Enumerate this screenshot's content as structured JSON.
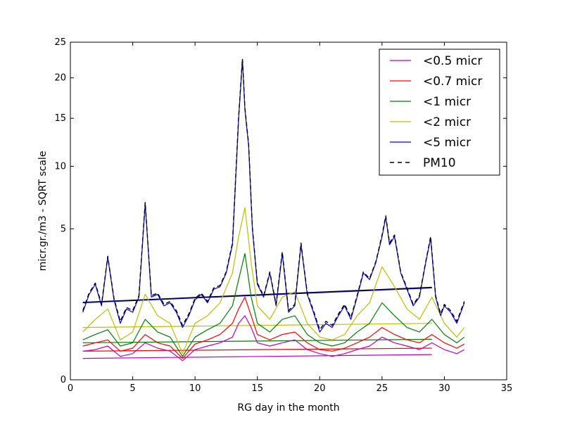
{
  "chart_data": {
    "type": "line",
    "xlabel": "RG day in the month",
    "ylabel": "micr.gr./m3 - SQRT scale",
    "xlim": [
      0,
      35
    ],
    "ylim": [
      0,
      25
    ],
    "y_scale": "sqrt",
    "x_ticks": [
      "0",
      "5",
      "10",
      "15",
      "20",
      "25",
      "30",
      "35"
    ],
    "y_ticks": [
      "0",
      "5",
      "10",
      "15",
      "20",
      "25"
    ],
    "legend_position": "top-right",
    "grid": false,
    "series": [
      {
        "name": "<0.5 micr",
        "color": "#bf00bf",
        "style": "solid",
        "x": [
          1,
          2,
          3,
          4,
          5,
          6,
          7,
          8,
          9,
          10,
          11,
          12,
          13,
          13.5,
          14,
          14.5,
          15,
          16,
          17,
          18,
          19,
          20,
          21,
          22,
          23,
          24,
          25,
          26,
          27,
          28,
          29,
          30,
          31,
          31.6
        ],
        "y": [
          0.18,
          0.2,
          0.25,
          0.12,
          0.15,
          0.3,
          0.22,
          0.18,
          0.08,
          0.2,
          0.25,
          0.3,
          0.4,
          0.7,
          0.9,
          0.6,
          0.3,
          0.25,
          0.3,
          0.35,
          0.2,
          0.15,
          0.12,
          0.15,
          0.2,
          0.25,
          0.4,
          0.3,
          0.25,
          0.2,
          0.3,
          0.2,
          0.15,
          0.2
        ]
      },
      {
        "name": "<0.7 micr",
        "color": "#ff0000",
        "style": "solid",
        "x": [
          1,
          2,
          3,
          4,
          5,
          6,
          7,
          8,
          9,
          10,
          11,
          12,
          13,
          13.5,
          14,
          14.5,
          15,
          16,
          17,
          18,
          19,
          20,
          21,
          22,
          23,
          24,
          25,
          26,
          27,
          28,
          29,
          30,
          31,
          31.6
        ],
        "y": [
          0.25,
          0.3,
          0.35,
          0.18,
          0.22,
          0.45,
          0.3,
          0.25,
          0.1,
          0.28,
          0.35,
          0.45,
          0.7,
          1.1,
          1.5,
          0.9,
          0.45,
          0.35,
          0.45,
          0.5,
          0.3,
          0.2,
          0.18,
          0.22,
          0.3,
          0.4,
          0.6,
          0.45,
          0.35,
          0.3,
          0.45,
          0.3,
          0.22,
          0.28
        ]
      },
      {
        "name": "<1 micr",
        "color": "#008000",
        "style": "solid",
        "x": [
          1,
          2,
          3,
          4,
          5,
          6,
          7,
          8,
          9,
          10,
          11,
          12,
          13,
          13.5,
          14,
          14.5,
          15,
          16,
          17,
          18,
          19,
          20,
          21,
          22,
          23,
          24,
          25,
          26,
          27,
          28,
          29,
          30,
          31,
          31.6
        ],
        "y": [
          0.35,
          0.45,
          0.55,
          0.25,
          0.3,
          0.8,
          0.5,
          0.4,
          0.12,
          0.4,
          0.55,
          0.7,
          1.2,
          2.2,
          3.5,
          1.5,
          0.7,
          0.5,
          0.8,
          0.9,
          0.45,
          0.3,
          0.25,
          0.3,
          0.5,
          0.7,
          1.3,
          0.9,
          0.6,
          0.5,
          0.8,
          0.45,
          0.3,
          0.4
        ]
      },
      {
        "name": "<2 micr",
        "color": "#bfbf00",
        "style": "solid",
        "x": [
          1,
          2,
          3,
          4,
          5,
          6,
          7,
          8,
          9,
          10,
          11,
          12,
          13,
          13.5,
          14,
          14.5,
          15,
          16,
          17,
          18,
          19,
          20,
          21,
          22,
          23,
          24,
          25,
          26,
          27,
          28,
          29,
          30,
          31,
          31.6
        ],
        "y": [
          0.5,
          0.8,
          1.1,
          0.35,
          0.5,
          1.6,
          0.9,
          0.7,
          0.15,
          0.7,
          0.9,
          1.3,
          2.5,
          4.5,
          6.5,
          3.0,
          1.2,
          0.8,
          1.5,
          1.7,
          0.7,
          0.4,
          0.35,
          0.45,
          0.9,
          1.3,
          2.8,
          1.9,
          1.1,
          0.8,
          1.5,
          0.7,
          0.4,
          0.6
        ]
      },
      {
        "name": "<5 micr",
        "color": "#0000ff",
        "style": "solid",
        "x": [
          1,
          1.5,
          2,
          2.5,
          3,
          3.5,
          4,
          4.5,
          5,
          5.5,
          6,
          6.5,
          7,
          7.5,
          8,
          8.5,
          9,
          9.5,
          10,
          10.5,
          11,
          11.5,
          12,
          12.5,
          13,
          13.5,
          13.8,
          14,
          14.3,
          14.6,
          15,
          15.5,
          16,
          16.5,
          17,
          17.5,
          18,
          18.5,
          19,
          19.5,
          20,
          20.5,
          21,
          21.5,
          22,
          22.5,
          23,
          23.5,
          24,
          24.5,
          25,
          25.3,
          25.6,
          26,
          26.5,
          27,
          27.5,
          28,
          28.5,
          28.9,
          29.3,
          29.7,
          30,
          30.5,
          31,
          31.6
        ],
        "y": [
          1.0,
          1.6,
          2.0,
          1.2,
          3.3,
          1.4,
          0.7,
          1.1,
          1.0,
          1.5,
          6.8,
          1.5,
          1.6,
          1.2,
          1.3,
          1.0,
          0.6,
          0.9,
          1.4,
          1.6,
          1.3,
          1.8,
          1.9,
          2.5,
          4.0,
          15.0,
          22.5,
          16.0,
          12.0,
          5.0,
          2.0,
          1.5,
          2.5,
          1.2,
          3.5,
          1.0,
          1.2,
          4.0,
          1.6,
          1.0,
          0.5,
          0.7,
          0.6,
          0.9,
          1.2,
          0.8,
          1.5,
          2.5,
          2.2,
          3.0,
          4.5,
          5.8,
          4.0,
          4.5,
          2.5,
          1.8,
          1.2,
          1.5,
          3.0,
          4.4,
          1.5,
          0.9,
          1.2,
          1.0,
          0.7,
          1.3
        ]
      },
      {
        "name": "PM10",
        "color": "#000000",
        "style": "dashed",
        "x": [
          1,
          1.5,
          2,
          2.5,
          3,
          3.5,
          4,
          4.5,
          5,
          5.5,
          6,
          6.5,
          7,
          7.5,
          8,
          8.5,
          9,
          9.5,
          10,
          10.5,
          11,
          11.5,
          12,
          12.5,
          13,
          13.5,
          13.8,
          14,
          14.3,
          14.6,
          15,
          15.5,
          16,
          16.5,
          17,
          17.5,
          18,
          18.5,
          19,
          19.5,
          20,
          20.5,
          21,
          21.5,
          22,
          22.5,
          23,
          23.5,
          24,
          24.5,
          25,
          25.3,
          25.6,
          26,
          26.5,
          27,
          27.5,
          28,
          28.5,
          28.9,
          29.3,
          29.7,
          30,
          30.5,
          31,
          31.6
        ],
        "y": [
          1.05,
          1.65,
          2.05,
          1.25,
          3.35,
          1.45,
          0.75,
          1.15,
          1.05,
          1.55,
          6.9,
          1.55,
          1.65,
          1.25,
          1.35,
          1.05,
          0.65,
          0.95,
          1.45,
          1.65,
          1.35,
          1.85,
          1.95,
          2.55,
          4.1,
          15.2,
          22.6,
          16.2,
          12.2,
          5.1,
          2.05,
          1.55,
          2.55,
          1.25,
          3.6,
          1.05,
          1.25,
          4.1,
          1.65,
          1.05,
          0.55,
          0.75,
          0.65,
          0.95,
          1.25,
          0.85,
          1.55,
          2.55,
          2.25,
          3.05,
          4.6,
          5.9,
          4.1,
          4.6,
          2.55,
          1.85,
          1.25,
          1.55,
          3.05,
          4.5,
          1.55,
          0.95,
          1.25,
          1.05,
          0.75,
          1.35
        ]
      }
    ],
    "trend_lines": [
      {
        "series": "<0.5 micr",
        "color": "#bf00bf",
        "x": [
          1,
          29
        ],
        "y": [
          0.1,
          0.14
        ]
      },
      {
        "series": "<0.7 micr",
        "color": "#ff0000",
        "x": [
          1,
          29
        ],
        "y": [
          0.18,
          0.22
        ]
      },
      {
        "series": "<1 micr",
        "color": "#008000",
        "x": [
          1,
          29
        ],
        "y": [
          0.3,
          0.36
        ]
      },
      {
        "series": "<2 micr",
        "color": "#bfbf00",
        "x": [
          1,
          29
        ],
        "y": [
          0.6,
          0.7
        ]
      },
      {
        "series": "<5 micr",
        "color": "#0000ff",
        "x": [
          1,
          29
        ],
        "y": [
          1.3,
          1.85
        ]
      },
      {
        "series": "PM10",
        "color": "#000000",
        "x": [
          1,
          29
        ],
        "y": [
          1.32,
          1.88
        ]
      }
    ]
  }
}
